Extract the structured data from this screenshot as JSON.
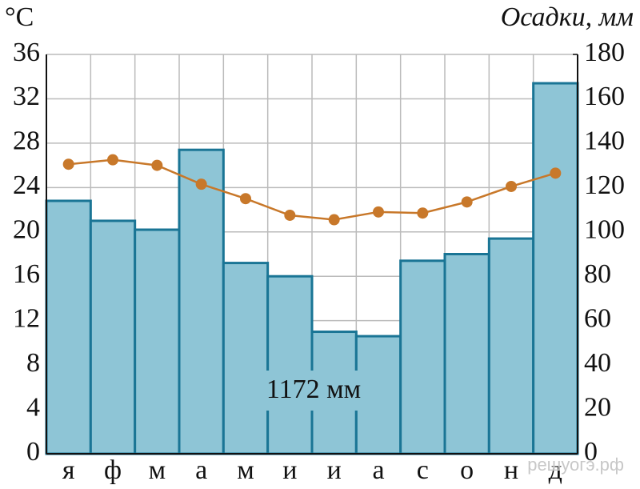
{
  "chart_data": {
    "type": "bar",
    "y_label": "°C",
    "y2_label": "Осадки, мм",
    "annotation": "1172 мм",
    "watermark": "решуогэ.рф",
    "categories": [
      "я",
      "ф",
      "м",
      "а",
      "м",
      "и",
      "и",
      "а",
      "с",
      "о",
      "н",
      "д"
    ],
    "series": [
      {
        "type": "bar",
        "axis": "y2",
        "color": "#8ec5d6",
        "values": [
          114,
          105,
          101,
          137,
          86,
          80,
          55,
          53,
          87,
          90,
          97,
          167
        ]
      },
      {
        "type": "line",
        "color": "#c8782a",
        "values": [
          26.1,
          26.5,
          26.0,
          24.3,
          23.0,
          21.5,
          21.1,
          21.8,
          21.7,
          22.7,
          24.1,
          25.3
        ]
      }
    ],
    "ylim": [
      0,
      36
    ],
    "yticks": [
      0,
      4,
      8,
      12,
      16,
      20,
      24,
      28,
      32,
      36
    ],
    "y2lim": [
      0,
      180
    ],
    "y2ticks": [
      0,
      20,
      40,
      60,
      80,
      100,
      120,
      140,
      160,
      180
    ],
    "grid": true
  }
}
